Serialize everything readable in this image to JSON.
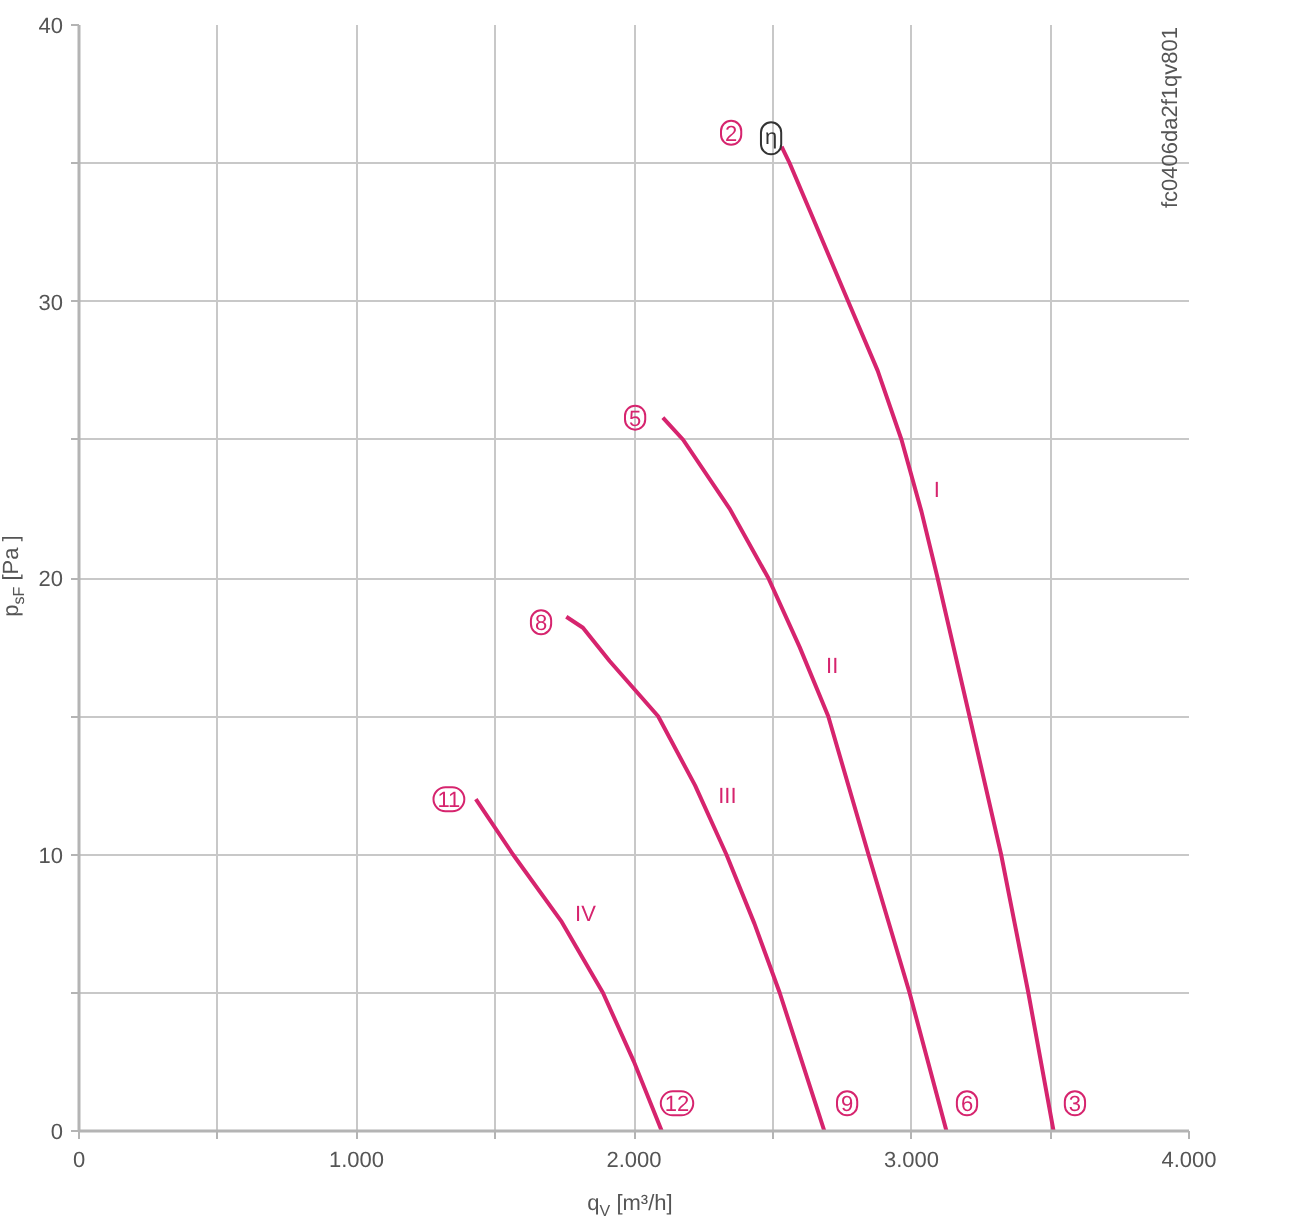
{
  "chart_data": {
    "type": "line",
    "xlabel": "q$_{V}$ [m³/h]",
    "ylabel": "p$_{sF}$ [Pa ]",
    "series": [
      {
        "name": "I",
        "color": "#d6246e",
        "x": [
          2532,
          2561,
          2633,
          2772,
          2878,
          2964,
          3036,
          3094,
          3209,
          3323,
          3421,
          3512
        ],
        "values": [
          35.6,
          35,
          33.3,
          30,
          27.5,
          25,
          22.4,
          20,
          15,
          10,
          5,
          0
        ]
      },
      {
        "name": "II",
        "color": "#d6246e",
        "x": [
          2104,
          2177,
          2345,
          2484,
          2597,
          2700,
          2845,
          2993,
          3126
        ],
        "values": [
          25.8,
          25,
          22.5,
          20,
          17.5,
          15,
          10,
          5,
          0
        ]
      },
      {
        "name": "III",
        "color": "#d6246e",
        "x": [
          1756,
          1816,
          1912,
          2087,
          2220,
          2333,
          2434,
          2525,
          2686
        ],
        "values": [
          18.6,
          18.2,
          17,
          15,
          12.5,
          10,
          7.5,
          5,
          0
        ]
      },
      {
        "name": "IV",
        "color": "#d6246e",
        "x": [
          1430,
          1564,
          1737,
          1888,
          2000,
          2100
        ],
        "values": [
          12,
          10,
          7.6,
          5,
          2.5,
          0
        ]
      }
    ],
    "xlim": [
      0,
      4000
    ],
    "ylim": [
      0,
      40
    ],
    "xticks": [
      0,
      {
        "value": 500,
        "label": null
      },
      {
        "value": 1000,
        "label": "1.000"
      },
      {
        "value": 1500,
        "label": null
      },
      {
        "value": 2000,
        "label": "2.000"
      },
      {
        "value": 2500,
        "label": null
      },
      {
        "value": 3000,
        "label": "3.000"
      },
      {
        "value": 3500,
        "label": null
      },
      {
        "value": 4000,
        "label": "4.000"
      }
    ],
    "yticks": [
      0,
      {
        "value": 5,
        "label": null
      },
      10,
      {
        "value": 15,
        "label": null
      },
      20,
      {
        "value": 25,
        "label": null
      },
      30,
      {
        "value": 35,
        "label": null
      },
      40
    ],
    "grid": true,
    "marker": "none",
    "line_style": "solid",
    "annotations": [
      {
        "text": "2",
        "x": 2350,
        "y": 36.1
      },
      {
        "text": "η",
        "x": 2494,
        "y": 35.9
      },
      {
        "text": "5",
        "x": 2004,
        "y": 25.8
      },
      {
        "text": "8",
        "x": 1665,
        "y": 18.4
      },
      {
        "text": "11",
        "x": 1333,
        "y": 12.0
      },
      {
        "text": "12",
        "x": 2155,
        "y": 1.0
      },
      {
        "text": "9",
        "x": 2768,
        "y": 1.0
      },
      {
        "text": "6",
        "x": 3200,
        "y": 1.0
      },
      {
        "text": "3",
        "x": 3589,
        "y": 1.0
      },
      "fc0406da2f1qv801"
    ]
  }
}
